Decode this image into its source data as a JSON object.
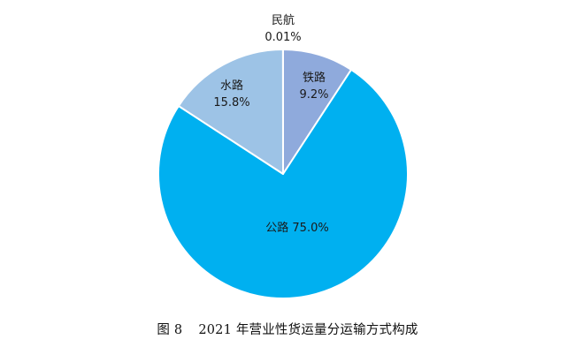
{
  "caption": {
    "figure_number": "图 8",
    "title": "2021 年营业性货运量分运输方式构成"
  },
  "chart_data": {
    "type": "pie",
    "title": "",
    "start_angle_deg": 0,
    "direction": "clockwise",
    "slices": [
      {
        "name": "铁路",
        "value": 9.2,
        "value_label": "9.2%",
        "color": "#8faadc"
      },
      {
        "name": "公路",
        "value": 75.0,
        "value_label": "公路 75.0%",
        "color": "#00b0f0"
      },
      {
        "name": "水路",
        "value": 15.8,
        "value_label": "15.8%",
        "color": "#9dc3e6"
      },
      {
        "name": "民航",
        "value": 0.01,
        "value_label": "0.01%",
        "color": "#4472c4"
      }
    ],
    "legend": "none",
    "border_color": "#ffffff"
  }
}
